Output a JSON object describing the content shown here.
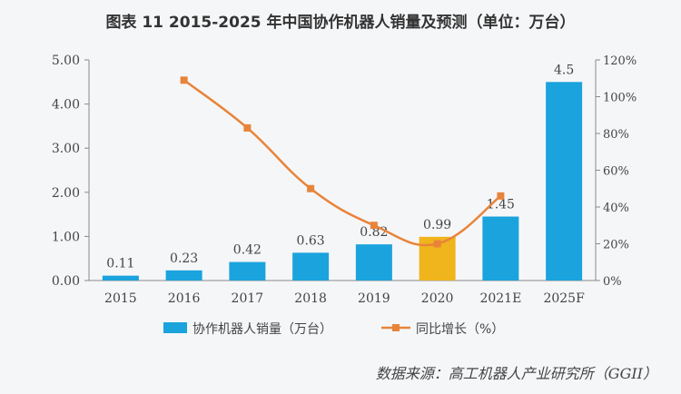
{
  "title": "图表 11   2015-2025 年中国协作机器人销量及预测（单位：万台）",
  "source": "数据来源：高工机器人产业研究所（GGII）",
  "chart_data": {
    "type": "bar",
    "categories": [
      "2015",
      "2016",
      "2017",
      "2018",
      "2019",
      "2020",
      "2021E",
      "2025F"
    ],
    "series": [
      {
        "name": "协作机器人销量（万台）",
        "type": "bar",
        "axis": "left",
        "values": [
          0.11,
          0.23,
          0.42,
          0.63,
          0.82,
          0.99,
          1.45,
          4.5
        ],
        "labels": [
          "0.11",
          "0.23",
          "0.42",
          "0.63",
          "0.82",
          "0.99",
          "1.45",
          "4.5"
        ],
        "color": "#1ba3dd",
        "highlight_index": 5,
        "highlight_color": "#f0b41c"
      },
      {
        "name": "同比增长（%）",
        "type": "line",
        "axis": "right",
        "values": [
          null,
          109,
          83,
          50,
          30,
          20,
          46,
          null
        ],
        "color": "#e8843a"
      }
    ],
    "left_axis": {
      "min": 0,
      "max": 5,
      "step": 1,
      "tick_labels": [
        "0.00",
        "1.00",
        "2.00",
        "3.00",
        "4.00",
        "5.00"
      ]
    },
    "right_axis": {
      "min": 0,
      "max": 120,
      "step": 20,
      "tick_labels": [
        "0%",
        "20%",
        "40%",
        "60%",
        "80%",
        "100%",
        "120%"
      ]
    },
    "legend_position": "bottom",
    "grid": false
  }
}
